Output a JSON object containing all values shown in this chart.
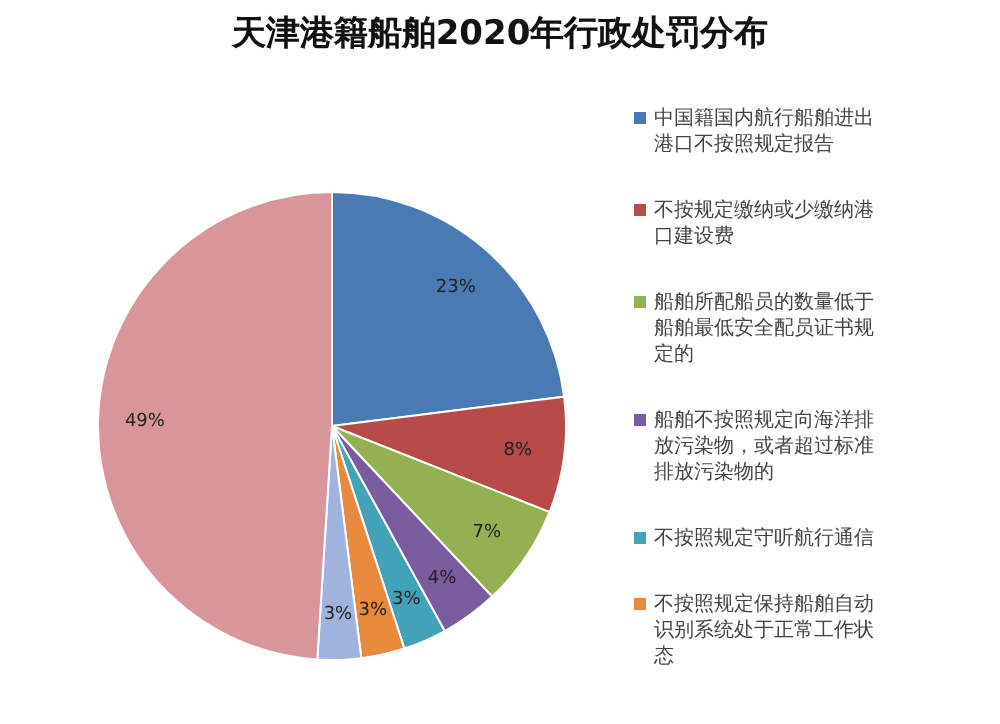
{
  "chart_data": {
    "type": "pie",
    "title": "天津港籍船舶2020年行政处罚分布",
    "categories": [
      "中国籍国内航行船舶进出港口不按照规定报告",
      "不按规定缴纳或少缴纳港口建设费",
      "船舶所配船员的数量低于船舶最低安全配员证书规定的",
      "船舶不按照规定向海洋排放污染物，或者超过标准排放污染物的",
      "不按照规定守听航行通信",
      "不按照规定保持船舶自动识别系统处于正常工作状态",
      null,
      null
    ],
    "values": [
      23,
      8,
      7,
      4,
      3,
      3,
      3,
      49
    ],
    "colors": [
      "#4a7ab4",
      "#b84a47",
      "#93b153",
      "#7a5c9e",
      "#42a3b8",
      "#e8893c",
      "#9fb3dc",
      "#d9969a"
    ],
    "value_labels": [
      "23%",
      "8%",
      "7%",
      "4%",
      "3%",
      "3%",
      "3%",
      "49%"
    ],
    "legend": "right"
  }
}
